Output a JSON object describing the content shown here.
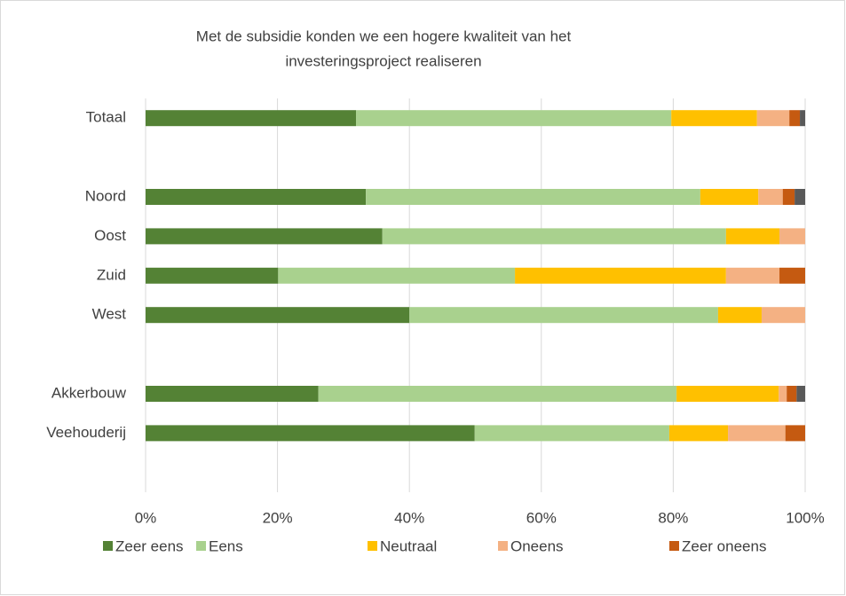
{
  "chart_data": {
    "type": "stacked_barh",
    "title": [
      "Met de subsidie konden we een hogere kwaliteit van het",
      "investeringsproject realiseren"
    ],
    "categories": [
      "Totaal",
      null,
      "Noord",
      "Oost",
      "Zuid",
      "West",
      null,
      "Akkerbouw",
      "Veehouderij",
      null
    ],
    "series": [
      {
        "name": "Zeer eens",
        "color": "#548235",
        "values": [
          31.9,
          null,
          33.4,
          35.9,
          20.1,
          40.0,
          null,
          26.2,
          49.9,
          null
        ]
      },
      {
        "name": "Eens",
        "color": "#a9d18e",
        "values": [
          47.8,
          null,
          50.7,
          52.1,
          35.9,
          46.8,
          null,
          54.3,
          29.5,
          null
        ]
      },
      {
        "name": "Neutraal",
        "color": "#ffc000",
        "values": [
          13.0,
          null,
          8.8,
          8.1,
          32.0,
          6.6,
          null,
          15.5,
          8.9,
          null
        ]
      },
      {
        "name": "Oneens",
        "color": "#f4b183",
        "values": [
          4.9,
          null,
          3.7,
          3.9,
          8.1,
          6.6,
          null,
          1.2,
          8.7,
          null
        ]
      },
      {
        "name": "Zeer oneens",
        "color": "#c55a11",
        "values": [
          1.6,
          null,
          1.8,
          0,
          3.9,
          0,
          null,
          1.5,
          3.0,
          null
        ]
      },
      {
        "color": "#595959",
        "values": [
          0.8,
          null,
          1.6,
          0,
          0,
          0,
          null,
          1.3,
          0,
          null
        ]
      }
    ],
    "xlim": [
      0,
      100
    ],
    "xticks": [
      {
        "value": 0,
        "label": "0%"
      },
      {
        "value": 20,
        "label": "20%"
      },
      {
        "value": 40,
        "label": "40%"
      },
      {
        "value": 60,
        "label": "60%"
      },
      {
        "value": 80,
        "label": "80%"
      },
      {
        "value": 100,
        "label": "100%"
      }
    ],
    "grid": true,
    "legend": "bottom"
  }
}
